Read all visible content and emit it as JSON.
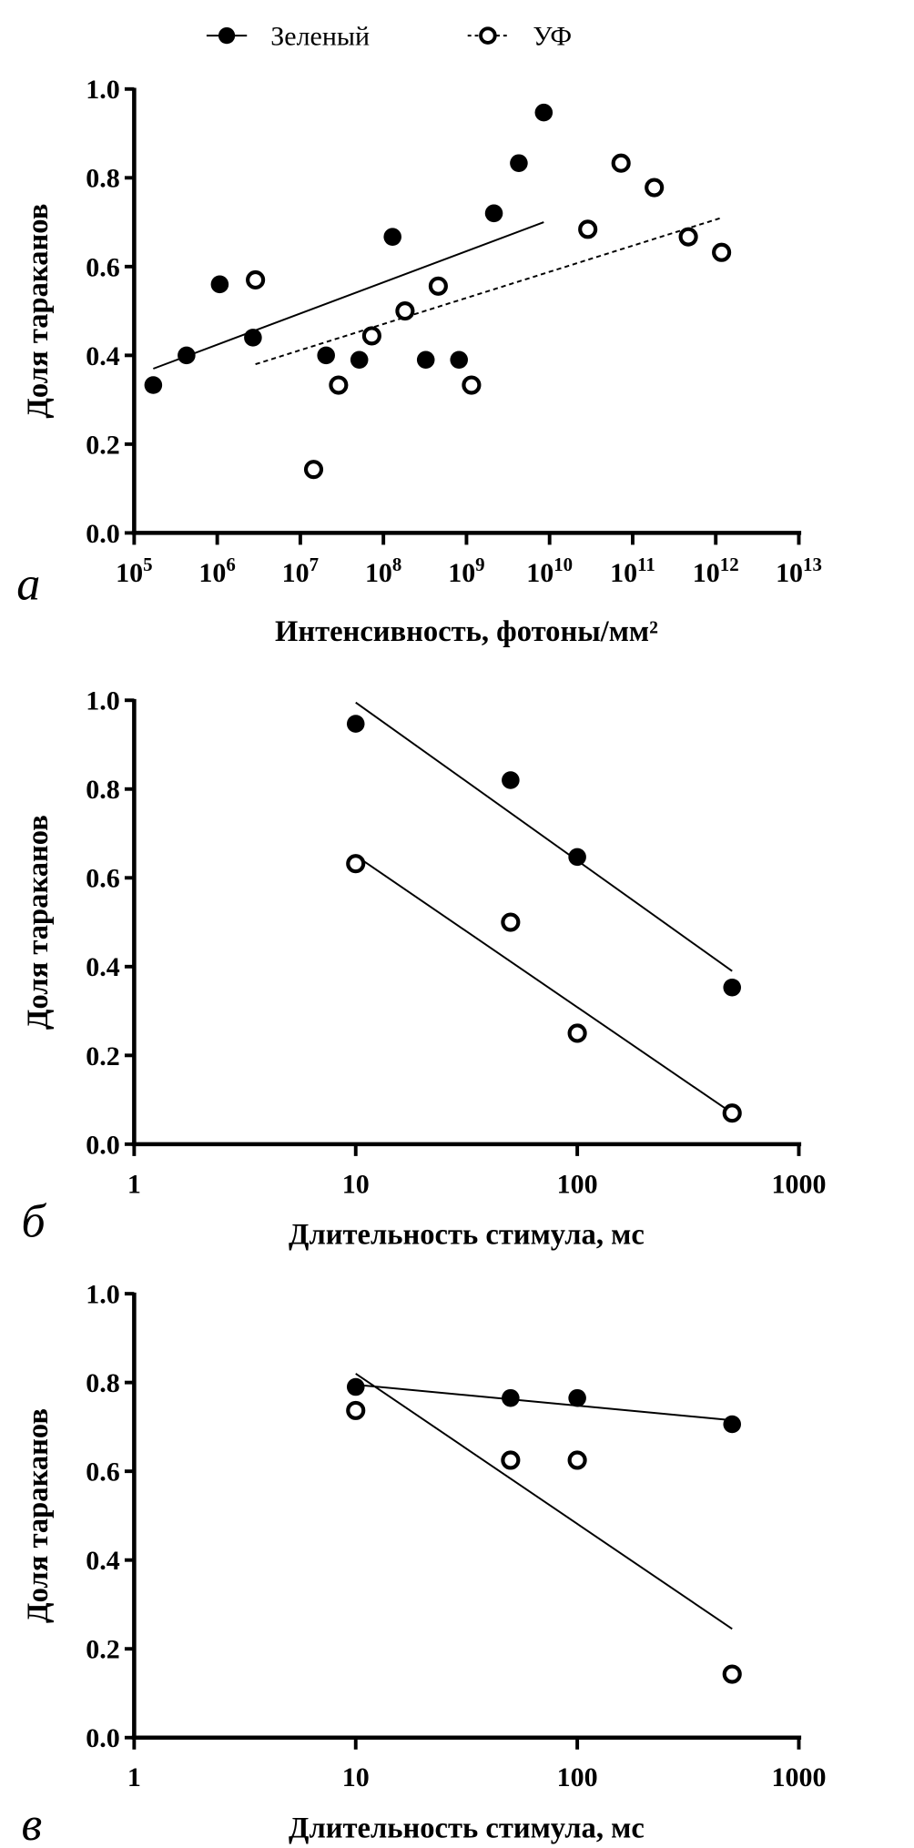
{
  "legend": {
    "items": [
      {
        "label": "Зеленый",
        "marker": "filled-circle",
        "line": "solid"
      },
      {
        "label": "УФ",
        "marker": "open-circle",
        "line": "dashed"
      }
    ]
  },
  "chart_data": [
    {
      "type": "scatter",
      "panel_label": "а",
      "xscale": "log",
      "xlim_log10": [
        5,
        13
      ],
      "x_tick_log10": [
        5,
        6,
        7,
        8,
        9,
        10,
        11,
        12,
        13
      ],
      "x_tick_labels": [
        "10^5",
        "10^6",
        "10^7",
        "10^8",
        "10^9",
        "10^10",
        "10^11",
        "10^12",
        "10^13"
      ],
      "ylim": [
        0,
        1
      ],
      "y_ticks": [
        0,
        0.2,
        0.4,
        0.6,
        0.8,
        1.0
      ],
      "y_tick_labels": [
        "0.0",
        "0.2",
        "0.4",
        "0.6",
        "0.8",
        "1.0"
      ],
      "xlabel": "Интенсивность, фотоны/мм²",
      "ylabel": "Доля тараканов",
      "grid": false,
      "series": [
        {
          "name": "Зеленый",
          "marker": "filled",
          "x_log10": [
            5.23,
            5.63,
            6.03,
            6.43,
            7.31,
            7.71,
            8.11,
            8.51,
            8.91,
            9.33,
            9.63,
            9.93
          ],
          "y": [
            0.333,
            0.4,
            0.56,
            0.44,
            0.4,
            0.39,
            0.667,
            0.39,
            0.39,
            0.72,
            0.833,
            0.947
          ],
          "fit": {
            "x_log10": [
              5.23,
              9.93
            ],
            "y": [
              0.37,
              0.7
            ],
            "style": "solid"
          }
        },
        {
          "name": "УФ",
          "marker": "open",
          "x_log10": [
            6.46,
            7.16,
            7.46,
            7.86,
            8.26,
            8.66,
            9.06,
            10.46,
            10.86,
            11.26,
            11.67,
            12.07
          ],
          "y": [
            0.57,
            0.143,
            0.333,
            0.444,
            0.5,
            0.556,
            0.333,
            0.684,
            0.833,
            0.778,
            0.667,
            0.632
          ],
          "fit": {
            "x_log10": [
              6.46,
              12.07
            ],
            "y": [
              0.38,
              0.71
            ],
            "style": "dashed"
          }
        }
      ]
    },
    {
      "type": "scatter",
      "panel_label": "б",
      "xscale": "log",
      "xlim_log10": [
        0,
        3
      ],
      "x_tick_log10": [
        0,
        1,
        2,
        3
      ],
      "x_tick_labels": [
        "1",
        "10",
        "100",
        "1000"
      ],
      "ylim": [
        0,
        1
      ],
      "y_ticks": [
        0,
        0.2,
        0.4,
        0.6,
        0.8,
        1.0
      ],
      "y_tick_labels": [
        "0.0",
        "0.2",
        "0.4",
        "0.6",
        "0.8",
        "1.0"
      ],
      "xlabel": "Длительность стимула, мс",
      "ylabel": "Доля тараканов",
      "grid": false,
      "series": [
        {
          "name": "Зеленый",
          "marker": "filled",
          "x": [
            10,
            50,
            100,
            500
          ],
          "y": [
            0.947,
            0.82,
            0.647,
            0.353
          ],
          "fit": {
            "x": [
              10,
              500
            ],
            "y": [
              0.995,
              0.39
            ],
            "style": "solid"
          }
        },
        {
          "name": "УФ",
          "marker": "open",
          "x": [
            10,
            50,
            100,
            500
          ],
          "y": [
            0.632,
            0.5,
            0.25,
            0.07
          ],
          "fit": {
            "x": [
              10,
              500
            ],
            "y": [
              0.65,
              0.07
            ],
            "style": "solid"
          }
        }
      ]
    },
    {
      "type": "scatter",
      "panel_label": "в",
      "xscale": "log",
      "xlim_log10": [
        0,
        3
      ],
      "x_tick_log10": [
        0,
        1,
        2,
        3
      ],
      "x_tick_labels": [
        "1",
        "10",
        "100",
        "1000"
      ],
      "ylim": [
        0,
        1
      ],
      "y_ticks": [
        0,
        0.2,
        0.4,
        0.6,
        0.8,
        1.0
      ],
      "y_tick_labels": [
        "0.0",
        "0.2",
        "0.4",
        "0.6",
        "0.8",
        "1.0"
      ],
      "xlabel": "Длительность стимула, мс",
      "ylabel": "Доля тараканов",
      "grid": false,
      "series": [
        {
          "name": "Зеленый",
          "marker": "filled",
          "x": [
            10,
            50,
            100,
            500
          ],
          "y": [
            0.79,
            0.765,
            0.765,
            0.706
          ],
          "fit": {
            "x": [
              10,
              500
            ],
            "y": [
              0.795,
              0.715
            ],
            "style": "solid"
          }
        },
        {
          "name": "УФ",
          "marker": "open",
          "x": [
            10,
            50,
            100,
            500
          ],
          "y": [
            0.737,
            0.625,
            0.625,
            0.143
          ],
          "fit": {
            "x": [
              10,
              500
            ],
            "y": [
              0.82,
              0.245
            ],
            "style": "solid"
          }
        }
      ]
    }
  ]
}
